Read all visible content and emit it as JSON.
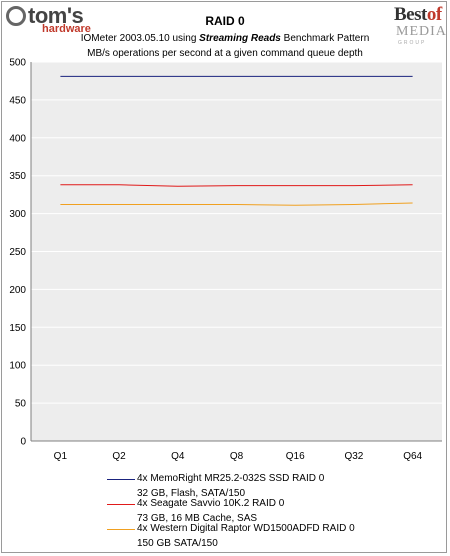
{
  "logo_left": {
    "main": "tom's",
    "sub": "hardware"
  },
  "logo_right": {
    "best": "Best",
    "of": "of",
    "media": "MEDIA",
    "group": "GROUP"
  },
  "chart_data": {
    "type": "line",
    "title": "RAID 0",
    "subtitle_prefix": "IOMeter 2003.05.10 using ",
    "subtitle_emph": "Streaming Reads",
    "subtitle_suffix": " Benchmark Pattern",
    "subtitle2": "MB/s operations per second at a given command queue depth",
    "categories": [
      "Q1",
      "Q2",
      "Q4",
      "Q8",
      "Q16",
      "Q32",
      "Q64"
    ],
    "ylim": [
      0,
      500
    ],
    "yticks": [
      "0",
      "50",
      "100",
      "150",
      "200",
      "250",
      "300",
      "350",
      "400",
      "450",
      "500"
    ],
    "grid": true,
    "legend_placement": "bottom",
    "series": [
      {
        "name": "4x MemoRight MR25.2-032S SSD RAID 0",
        "detail": "32 GB, Flash, SATA/150",
        "color": "#1a237e",
        "values": [
          481,
          481,
          481,
          481,
          481,
          481,
          481
        ]
      },
      {
        "name": "4x Seagate Savvio 10K.2 RAID 0",
        "detail": "73 GB, 16 MB Cache, SAS",
        "color": "#e01a1a",
        "values": [
          338,
          338,
          336,
          337,
          337,
          337,
          338
        ]
      },
      {
        "name": "4x Western Digital Raptor WD1500ADFD RAID 0",
        "detail": "150 GB SATA/150",
        "color": "#f0a020",
        "values": [
          312,
          312,
          312,
          312,
          311,
          312,
          314
        ]
      }
    ]
  }
}
